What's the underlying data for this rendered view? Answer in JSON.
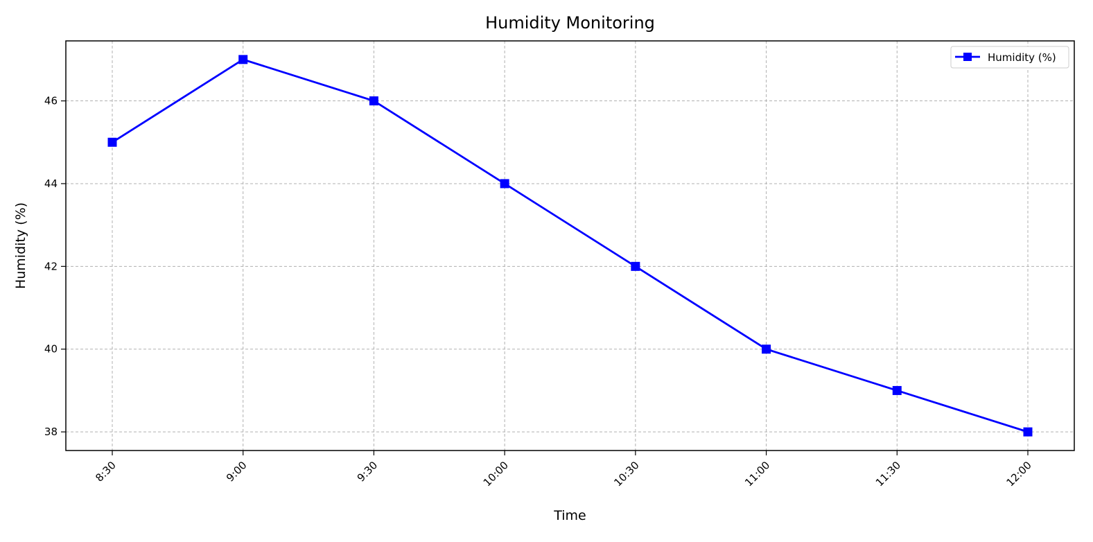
{
  "chart_data": {
    "type": "line",
    "title": "Humidity Monitoring",
    "xlabel": "Time",
    "ylabel": "Humidity (%)",
    "categories": [
      "8:30",
      "9:00",
      "9:30",
      "10:00",
      "10:30",
      "11:00",
      "11:30",
      "12:00"
    ],
    "series": [
      {
        "name": "Humidity (%)",
        "values": [
          45,
          47,
          46,
          44,
          42,
          40,
          39,
          38
        ],
        "color": "#0000ff",
        "marker": "square"
      }
    ],
    "ylim": [
      37.55,
      47.45
    ],
    "yticks": [
      38,
      40,
      42,
      44,
      46
    ],
    "grid": true,
    "grid_style": "dashed",
    "legend_position": "top-right",
    "xtick_rotation": 45
  }
}
